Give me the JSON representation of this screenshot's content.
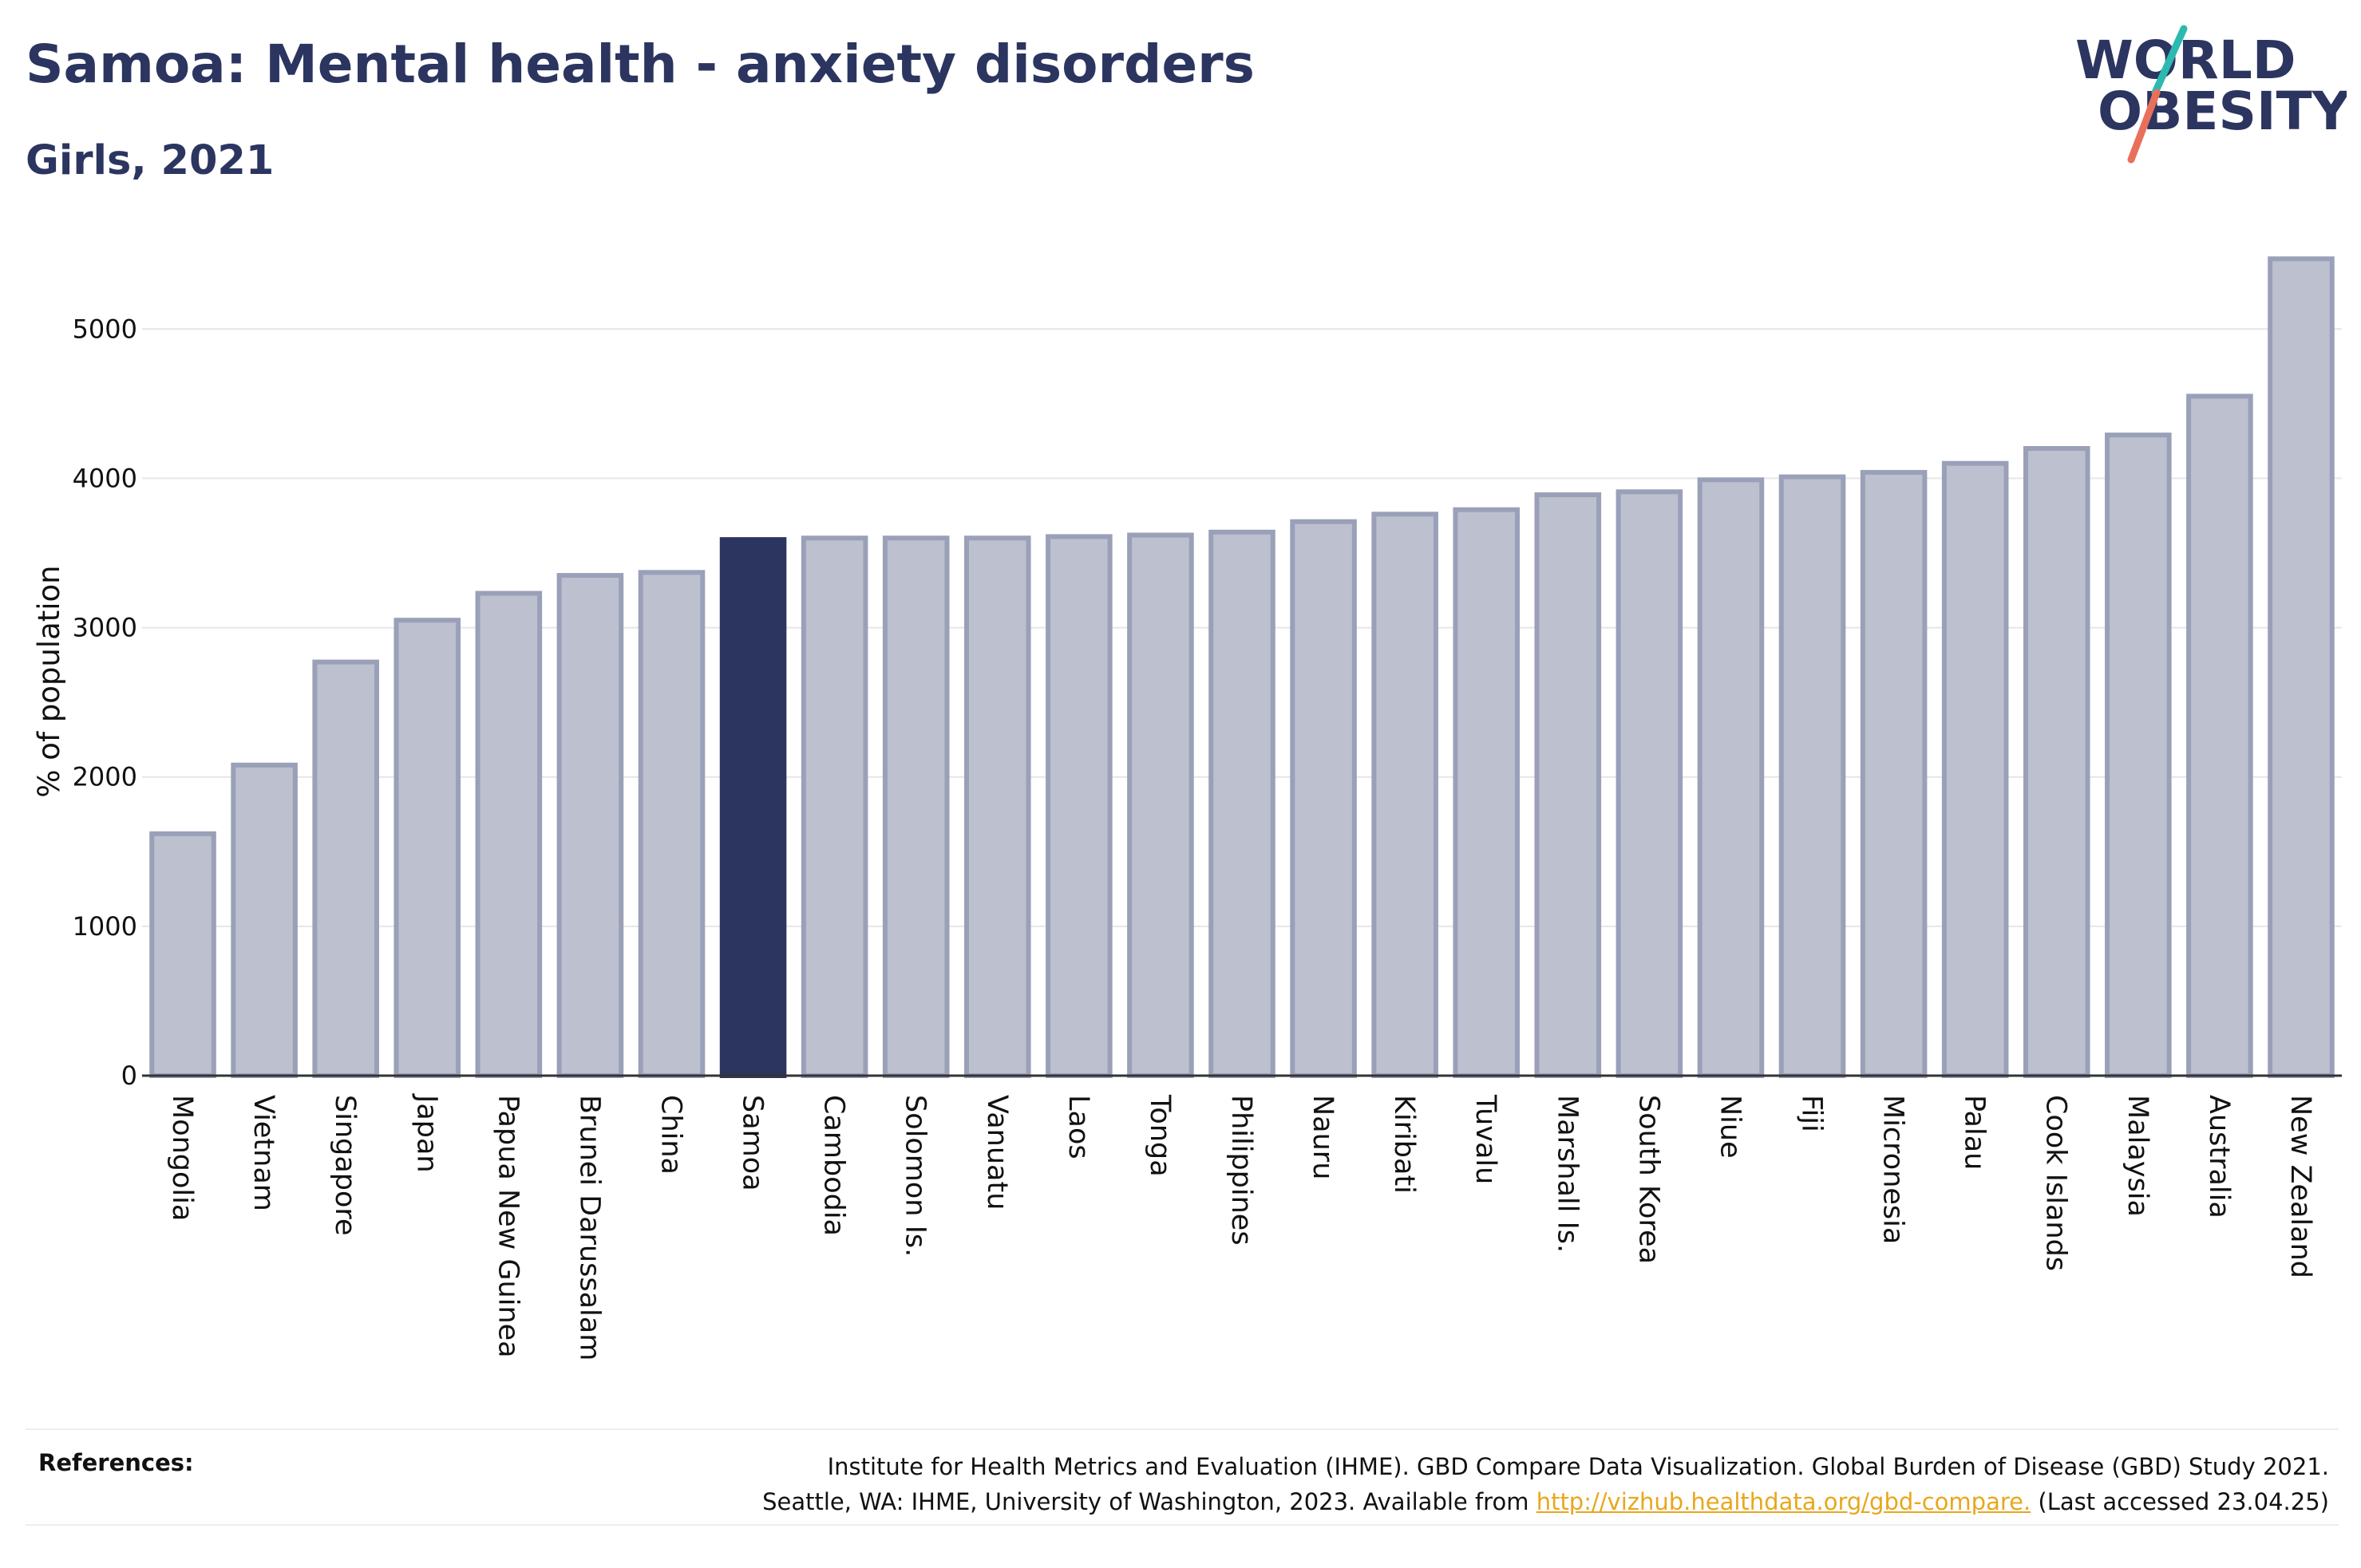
{
  "header": {
    "title": "Samoa: Mental health - anxiety disorders",
    "subtitle": "Girls, 2021"
  },
  "logo": {
    "line1": "WORLD",
    "line2": "OBESITY"
  },
  "chart_data": {
    "type": "bar",
    "categories": [
      "Mongolia",
      "Vietnam",
      "Singapore",
      "Japan",
      "Papua New Guinea",
      "Brunei Darussalam",
      "China",
      "Samoa",
      "Cambodia",
      "Solomon Is.",
      "Vanuatu",
      "Laos",
      "Tonga",
      "Philippines",
      "Nauru",
      "Kiribati",
      "Tuvalu",
      "Marshall Is.",
      "South Korea",
      "Niue",
      "Fiji",
      "Micronesia",
      "Palau",
      "Cook Islands",
      "Malaysia",
      "Australia",
      "New Zealand"
    ],
    "values": [
      1620,
      2080,
      2770,
      3050,
      3230,
      3350,
      3370,
      3590,
      3600,
      3600,
      3600,
      3610,
      3620,
      3640,
      3710,
      3760,
      3790,
      3890,
      3910,
      3990,
      4010,
      4040,
      4100,
      4200,
      4290,
      4550,
      5470
    ],
    "highlight": "Samoa",
    "ylabel": "% of population",
    "ylim": [
      0,
      5600
    ],
    "yticks": [
      0,
      1000,
      2000,
      3000,
      4000,
      5000
    ],
    "grid": true,
    "colors": {
      "bar": "#bcc0cf",
      "bar_border": "#9aa0b8",
      "highlight": "#2b3560",
      "grid": "#e6e6e6",
      "axis": "#333333"
    }
  },
  "references": {
    "label": "References:",
    "line1": "Institute for Health Metrics and Evaluation (IHME). GBD Compare Data Visualization. Global Burden of Disease (GBD) Study 2021.",
    "line2_prefix": "Seattle, WA: IHME, University of Washington, 2023. Available from ",
    "link": "http://vizhub.healthdata.org/gbd-compare.",
    "line2_suffix": " (Last accessed 23.04.25)"
  }
}
